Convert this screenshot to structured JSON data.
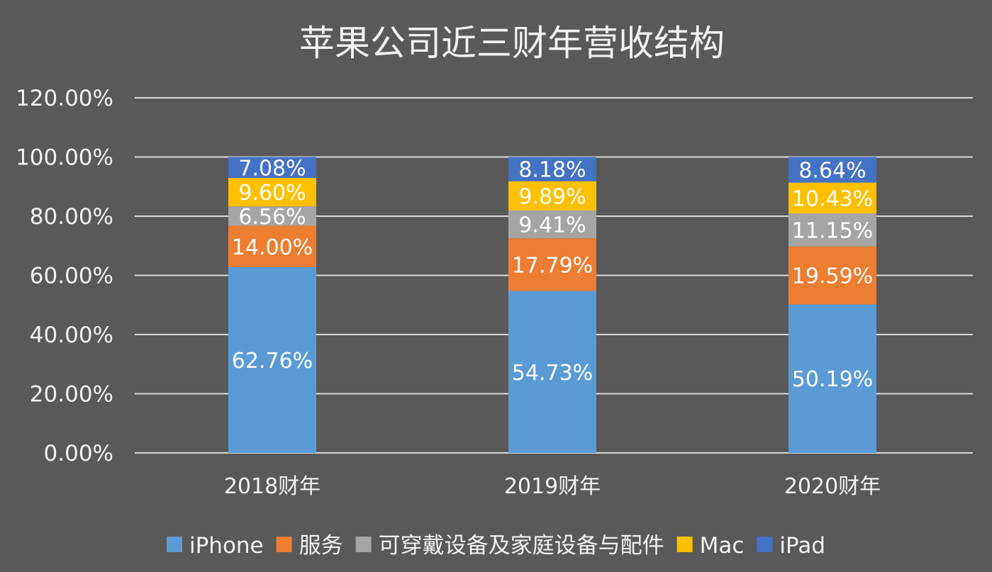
{
  "chart_data": {
    "type": "bar",
    "stacked": true,
    "title": "苹果公司近三财年营收结构",
    "xlabel": "",
    "ylabel": "",
    "ylim": [
      0,
      120
    ],
    "yticks": [
      "0.00%",
      "20.00%",
      "40.00%",
      "60.00%",
      "80.00%",
      "100.00%",
      "120.00%"
    ],
    "ytick_values": [
      0,
      20,
      40,
      60,
      80,
      100,
      120
    ],
    "grid": true,
    "legend_position": "bottom",
    "categories": [
      "2018财年",
      "2019财年",
      "2020财年"
    ],
    "series": [
      {
        "name": "iPhone",
        "color": "#5b9bd5",
        "values": [
          62.76,
          54.73,
          50.19
        ],
        "labels": [
          "62.76%",
          "54.73%",
          "50.19%"
        ]
      },
      {
        "name": "服务",
        "color": "#ed7d31",
        "values": [
          14.0,
          17.79,
          19.59
        ],
        "labels": [
          "14.00%",
          "17.79%",
          "19.59%"
        ]
      },
      {
        "name": "可穿戴设备及家庭设备与配件",
        "color": "#a5a5a5",
        "values": [
          6.56,
          9.41,
          11.15
        ],
        "labels": [
          "6.56%",
          "9.41%",
          "11.15%"
        ]
      },
      {
        "name": "Mac",
        "color": "#ffc000",
        "values": [
          9.6,
          9.89,
          10.43
        ],
        "labels": [
          "9.60%",
          "9.89%",
          "10.43%"
        ]
      },
      {
        "name": "iPad",
        "color": "#4472c4",
        "values": [
          7.08,
          8.18,
          8.64
        ],
        "labels": [
          "7.08%",
          "8.18%",
          "8.64%"
        ]
      }
    ]
  }
}
